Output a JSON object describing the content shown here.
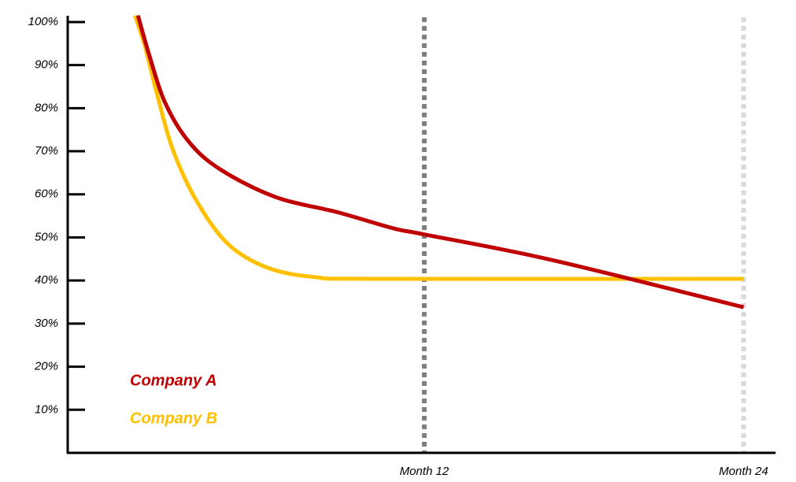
{
  "chart_data": {
    "type": "line",
    "xlim": [
      -1.4,
      25.2
    ],
    "ylim": [
      0,
      102
    ],
    "xticks": [
      {
        "value": 12,
        "label": "Month 12"
      },
      {
        "value": 24,
        "label": "Month 24"
      }
    ],
    "xtick_line_colors": [
      "#7f7f7f",
      "#d9d9d9"
    ],
    "yticks": [
      {
        "value": 10,
        "label": "10%"
      },
      {
        "value": 20,
        "label": "20%"
      },
      {
        "value": 30,
        "label": "30%"
      },
      {
        "value": 40,
        "label": "40%"
      },
      {
        "value": 50,
        "label": "50%"
      },
      {
        "value": 60,
        "label": "60%"
      },
      {
        "value": 70,
        "label": "70%"
      },
      {
        "value": 80,
        "label": "80%"
      },
      {
        "value": 90,
        "label": "90%"
      },
      {
        "value": 100,
        "label": "100%"
      }
    ],
    "series": [
      {
        "name": "Company A",
        "color": "#c00000",
        "x": [
          1.24,
          1.66,
          2.25,
          3.14,
          4.33,
          6.4,
          8.77,
          10.84,
          12,
          16.77,
          24
        ],
        "values": [
          101.5,
          92.4,
          81.4,
          72.3,
          65.8,
          59.4,
          55.8,
          52.1,
          50.7,
          44.8,
          33.8
        ]
      },
      {
        "name": "Company B",
        "color": "#ffc000",
        "x": [
          1.13,
          1.51,
          1.96,
          2.55,
          3.44,
          4.62,
          6.1,
          7.88,
          10.25,
          24
        ],
        "values": [
          101.5,
          94.2,
          83.2,
          70.4,
          58.5,
          48.5,
          43,
          40.8,
          40.4,
          40.4
        ]
      }
    ]
  }
}
